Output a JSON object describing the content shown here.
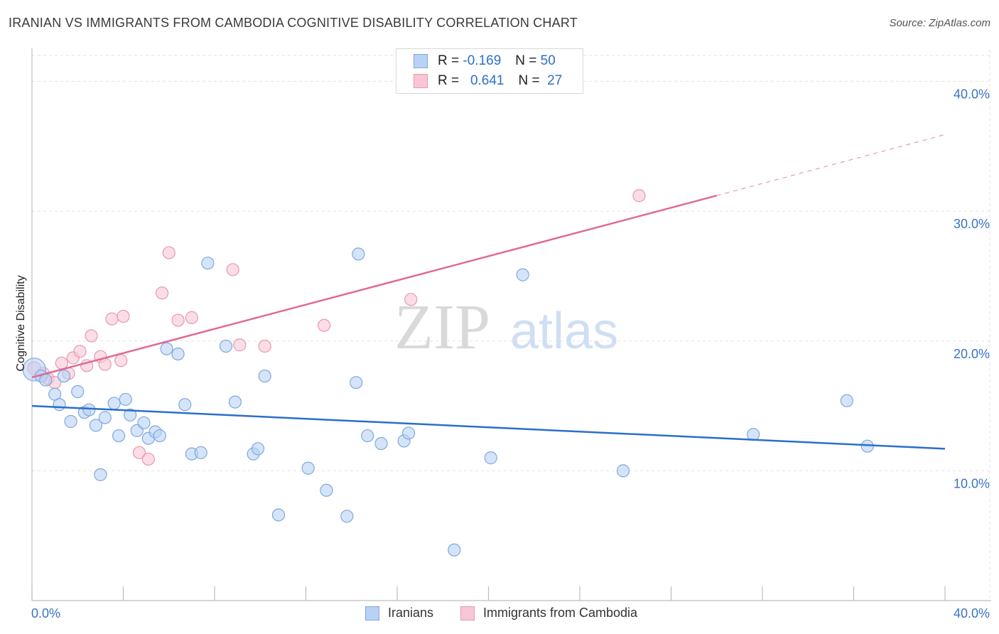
{
  "header": {
    "title": "IRANIAN VS IMMIGRANTS FROM CAMBODIA COGNITIVE DISABILITY CORRELATION CHART",
    "source": "Source: ZipAtlas.com"
  },
  "legend": {
    "rows": [
      {
        "r_label": "R =",
        "r_value": "-0.169",
        "n_label": "N =",
        "n_value": "50"
      },
      {
        "r_label": "R =",
        "r_value": "0.641",
        "n_label": "N =",
        "n_value": "27"
      }
    ]
  },
  "bottom_legend": [
    "Iranians",
    "Immigrants from Cambodia"
  ],
  "colors": {
    "blue_fill": "#b9d2f3",
    "blue_stroke": "#7ea8e0",
    "blue_line": "#2a6fcc",
    "pink_fill": "#f8c6d5",
    "pink_stroke": "#e898b0",
    "pink_line": "#e06a93",
    "tick_text": "#3a72c4",
    "grid": "#e3e3e3"
  },
  "chart_data": {
    "type": "scatter",
    "title": "IRANIAN VS IMMIGRANTS FROM CAMBODIA COGNITIVE DISABILITY CORRELATION CHART",
    "xlabel": "",
    "ylabel": "Cognitive Disability",
    "xlim": [
      0,
      40
    ],
    "ylim": [
      0,
      42
    ],
    "x_tick_labels": [
      "0.0%",
      "40.0%"
    ],
    "y_ticks": [
      10,
      20,
      30,
      40
    ],
    "y_tick_labels": [
      "10.0%",
      "20.0%",
      "30.0%",
      "40.0%"
    ],
    "grid": true,
    "legend_position": "top-center",
    "watermark": "ZIPatlas",
    "series": [
      {
        "name": "Iranians",
        "color": "#b9d2f3",
        "r": -0.169,
        "n": 50,
        "trend": {
          "x0": 0,
          "y0": 15.0,
          "x1": 40,
          "y1": 11.7
        },
        "points": [
          [
            0.1,
            17.8
          ],
          [
            0.4,
            17.3
          ],
          [
            0.6,
            17.0
          ],
          [
            1.0,
            15.9
          ],
          [
            1.2,
            15.1
          ],
          [
            1.4,
            17.3
          ],
          [
            1.7,
            13.8
          ],
          [
            2.0,
            16.1
          ],
          [
            2.3,
            14.5
          ],
          [
            2.5,
            14.7
          ],
          [
            2.8,
            13.5
          ],
          [
            3.0,
            9.7
          ],
          [
            3.2,
            14.1
          ],
          [
            3.6,
            15.2
          ],
          [
            3.8,
            12.7
          ],
          [
            4.1,
            15.5
          ],
          [
            4.3,
            14.3
          ],
          [
            4.6,
            13.1
          ],
          [
            4.9,
            13.7
          ],
          [
            5.1,
            12.5
          ],
          [
            5.4,
            13.0
          ],
          [
            5.6,
            12.7
          ],
          [
            5.9,
            19.4
          ],
          [
            6.4,
            19.0
          ],
          [
            6.7,
            15.1
          ],
          [
            7.0,
            11.3
          ],
          [
            7.4,
            11.4
          ],
          [
            7.7,
            26.0
          ],
          [
            8.5,
            19.6
          ],
          [
            8.9,
            15.3
          ],
          [
            9.7,
            11.3
          ],
          [
            9.9,
            11.7
          ],
          [
            10.2,
            17.3
          ],
          [
            10.8,
            6.6
          ],
          [
            12.1,
            10.2
          ],
          [
            12.9,
            8.5
          ],
          [
            13.8,
            6.5
          ],
          [
            14.2,
            16.8
          ],
          [
            14.3,
            26.7
          ],
          [
            14.7,
            12.7
          ],
          [
            15.3,
            12.1
          ],
          [
            16.3,
            12.3
          ],
          [
            16.5,
            12.9
          ],
          [
            18.5,
            3.9
          ],
          [
            20.1,
            11.0
          ],
          [
            21.5,
            25.1
          ],
          [
            25.9,
            10.0
          ],
          [
            31.6,
            12.8
          ],
          [
            35.7,
            15.4
          ],
          [
            36.6,
            11.9
          ]
        ]
      },
      {
        "name": "Immigrants from Cambodia",
        "color": "#f8c6d5",
        "r": 0.641,
        "n": 27,
        "trend": {
          "x0": 0,
          "y0": 17.2,
          "x1": 30,
          "y1": 31.2,
          "dash_x1": 40,
          "dash_y1": 35.9
        },
        "points": [
          [
            0.1,
            17.9
          ],
          [
            0.5,
            17.5
          ],
          [
            0.7,
            17.1
          ],
          [
            1.0,
            16.8
          ],
          [
            1.3,
            18.3
          ],
          [
            1.6,
            17.5
          ],
          [
            1.8,
            18.7
          ],
          [
            2.1,
            19.2
          ],
          [
            2.4,
            18.1
          ],
          [
            2.6,
            20.4
          ],
          [
            3.0,
            18.8
          ],
          [
            3.2,
            18.2
          ],
          [
            3.5,
            21.7
          ],
          [
            3.9,
            18.5
          ],
          [
            4.0,
            21.9
          ],
          [
            4.7,
            11.4
          ],
          [
            5.1,
            10.9
          ],
          [
            5.7,
            23.7
          ],
          [
            6.0,
            26.8
          ],
          [
            6.4,
            21.6
          ],
          [
            7.0,
            21.8
          ],
          [
            8.8,
            25.5
          ],
          [
            9.1,
            19.7
          ],
          [
            10.2,
            19.6
          ],
          [
            12.8,
            21.2
          ],
          [
            16.6,
            23.2
          ],
          [
            26.6,
            31.2
          ]
        ]
      }
    ]
  }
}
